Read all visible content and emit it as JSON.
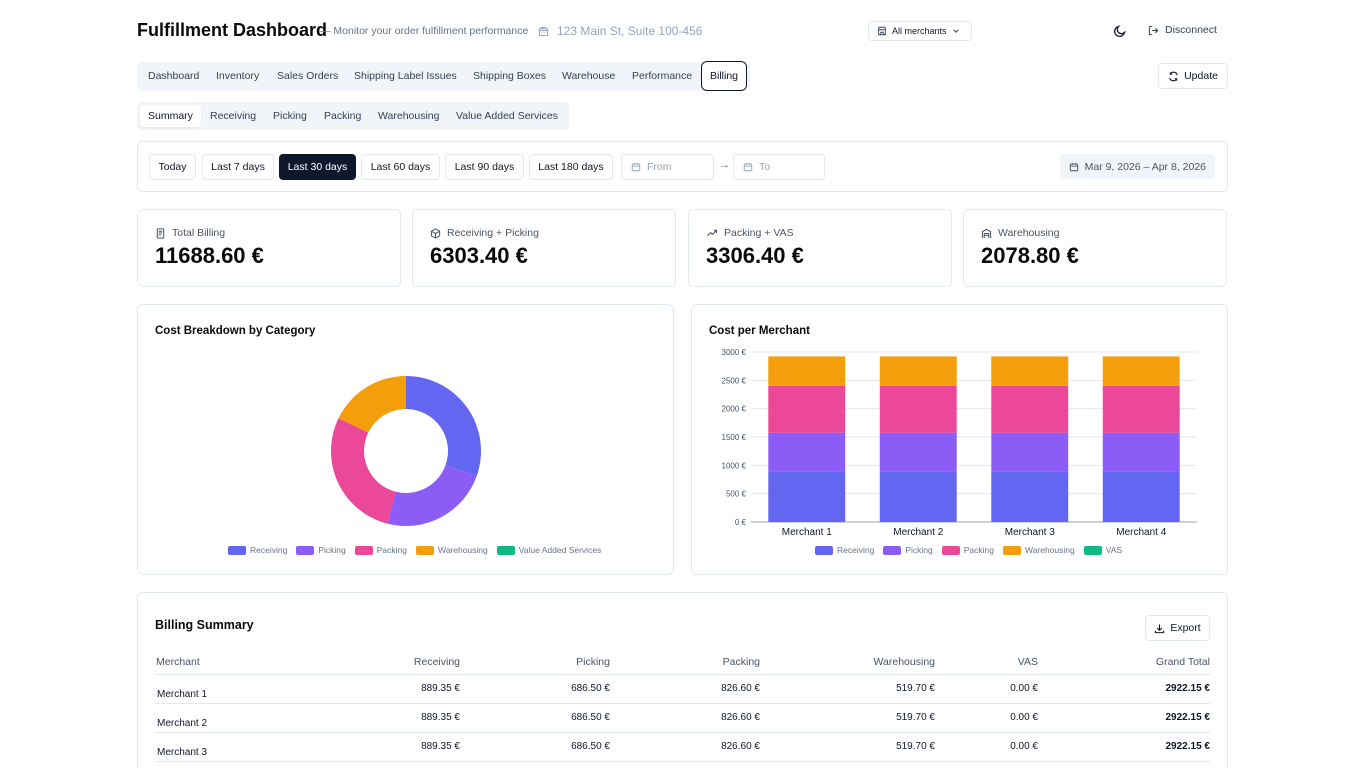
{
  "header": {
    "title": "Fulfillment Dashboard",
    "subtitle": "— Monitor your order fulfillment performance",
    "address": "123 Main St, Suite 100-456",
    "merchant_select": "All merchants",
    "disconnect_label": "Disconnect"
  },
  "main_tabs": [
    "Dashboard",
    "Inventory",
    "Sales Orders",
    "Shipping Label Issues",
    "Shipping Boxes",
    "Warehouse",
    "Performance",
    "Billing"
  ],
  "update_label": "Update",
  "sub_tabs": [
    "Summary",
    "Receiving",
    "Picking",
    "Packing",
    "Warehousing",
    "Value Added Services"
  ],
  "date_filter": {
    "ranges": [
      "Today",
      "Last 7 days",
      "Last 30 days",
      "Last 60 days",
      "Last 90 days",
      "Last 180 days"
    ],
    "active_range": "Last 30 days",
    "from_placeholder": "From",
    "to_placeholder": "To",
    "arrow": "→",
    "range_display": "Mar 9, 2026 – Apr 8, 2026"
  },
  "kpis": [
    {
      "label": "Total Billing",
      "value": "11688.60 €",
      "icon": "receipt-icon"
    },
    {
      "label": "Receiving + Picking",
      "value": "6303.40 €",
      "icon": "package-icon"
    },
    {
      "label": "Packing + VAS",
      "value": "3306.40 €",
      "icon": "trending-up-icon"
    },
    {
      "label": "Warehousing",
      "value": "2078.80 €",
      "icon": "warehouse-icon"
    }
  ],
  "colors": {
    "receiving": "#6366f1",
    "picking": "#8b5cf6",
    "packing": "#ec4899",
    "warehousing": "#f59e0b",
    "vas": "#10b981"
  },
  "chart_data": [
    {
      "type": "pie",
      "title": "Cost Breakdown by Category",
      "labels": [
        "Receiving",
        "Picking",
        "Packing",
        "Warehousing",
        "Value Added Services"
      ],
      "values": [
        3557.4,
        2746.0,
        3306.4,
        2078.8,
        0
      ],
      "legend_position": "bottom"
    },
    {
      "type": "bar",
      "stacked": true,
      "title": "Cost per Merchant",
      "categories": [
        "Merchant 1",
        "Merchant 2",
        "Merchant 3",
        "Merchant 4"
      ],
      "series": [
        {
          "name": "Receiving",
          "values": [
            889.35,
            889.35,
            889.35,
            889.35
          ]
        },
        {
          "name": "Picking",
          "values": [
            686.5,
            686.5,
            686.5,
            686.5
          ]
        },
        {
          "name": "Packing",
          "values": [
            826.6,
            826.6,
            826.6,
            826.6
          ]
        },
        {
          "name": "Warehousing",
          "values": [
            519.7,
            519.7,
            519.7,
            519.7
          ]
        },
        {
          "name": "VAS",
          "values": [
            0,
            0,
            0,
            0
          ]
        }
      ],
      "y_ticks": [
        "0 €",
        "500 €",
        "1000 €",
        "1500 €",
        "2000 €",
        "2500 €",
        "3000 €"
      ],
      "ylim": [
        0,
        3000
      ],
      "grid": true,
      "legend_position": "bottom"
    }
  ],
  "billing": {
    "title": "Billing Summary",
    "export_label": "Export",
    "columns": [
      "Merchant",
      "Receiving",
      "Picking",
      "Packing",
      "Warehousing",
      "VAS",
      "Grand Total"
    ],
    "rows": [
      [
        "Merchant 1",
        "889.35 €",
        "686.50 €",
        "826.60 €",
        "519.70 €",
        "0.00 €",
        "2922.15 €"
      ],
      [
        "Merchant 2",
        "889.35 €",
        "686.50 €",
        "826.60 €",
        "519.70 €",
        "0.00 €",
        "2922.15 €"
      ],
      [
        "Merchant 3",
        "889.35 €",
        "686.50 €",
        "826.60 €",
        "519.70 €",
        "0.00 €",
        "2922.15 €"
      ]
    ]
  }
}
